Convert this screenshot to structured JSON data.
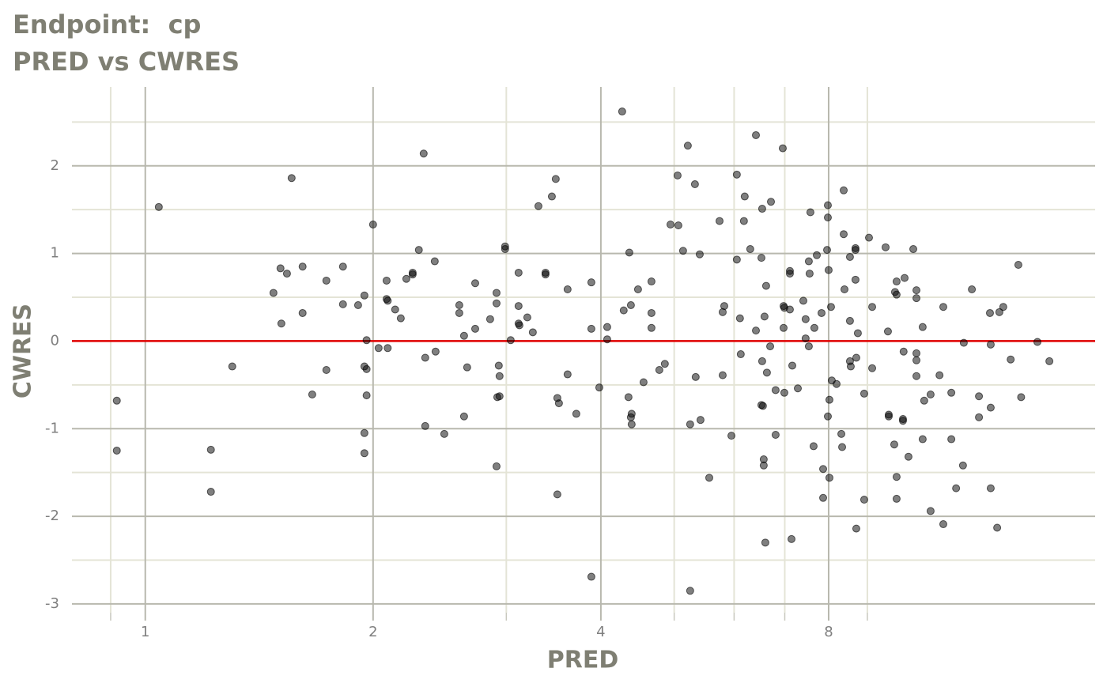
{
  "chart_data": {
    "type": "scatter",
    "title": "Endpoint:  cp",
    "subtitle": "PRED vs CWRES",
    "x_label": "PRED",
    "y_label": "CWRES",
    "x_log": true,
    "xlim": [
      0.8,
      18
    ],
    "ylim": [
      -3.1,
      2.9
    ],
    "xticks": [
      1,
      2,
      4,
      8
    ],
    "yticks": [
      -3,
      -2,
      -1,
      0,
      1,
      2
    ],
    "xminor": [
      0.9,
      3,
      5,
      6,
      7,
      9
    ],
    "yminor": [
      -2.5,
      -1.5,
      -0.5,
      0.5,
      1.5,
      2.5
    ],
    "grid": true,
    "color": "#000000",
    "refline": 0,
    "refline_color": "#e00000",
    "x": [
      0.917,
      0.917,
      1.042,
      1.221,
      1.221,
      1.303,
      1.477,
      1.509,
      1.513,
      1.539,
      1.561,
      1.614,
      1.614,
      1.662,
      1.735,
      1.735,
      1.825,
      1.825,
      1.911,
      1.948,
      1.948,
      1.948,
      1.961,
      1.948,
      1.961,
      1.961,
      2.0,
      2.034,
      2.084,
      2.084,
      2.091,
      2.091,
      2.139,
      2.176,
      2.213,
      2.256,
      2.256,
      2.299,
      2.333,
      2.344,
      2.344,
      2.413,
      2.419,
      2.484,
      2.6,
      2.6,
      2.638,
      2.638,
      2.663,
      2.729,
      2.729,
      2.856,
      2.912,
      2.912,
      2.912,
      2.919,
      2.932,
      2.939,
      2.939,
      2.989,
      2.989,
      3.04,
      3.114,
      3.114,
      3.114,
      3.122,
      3.198,
      3.252,
      3.308,
      3.38,
      3.38,
      3.446,
      3.487,
      3.504,
      3.504,
      3.521,
      3.615,
      3.615,
      3.712,
      3.886,
      3.886,
      3.886,
      3.981,
      4.078,
      4.078,
      4.268,
      4.288,
      4.351,
      4.362,
      4.383,
      4.383,
      4.393,
      4.393,
      4.479,
      4.555,
      4.666,
      4.666,
      4.666,
      4.779,
      4.86,
      4.944,
      5.052,
      5.064,
      5.137,
      5.212,
      5.249,
      5.249,
      5.326,
      5.338,
      5.404,
      5.417,
      5.563,
      5.74,
      5.795,
      5.795,
      5.823,
      5.951,
      6.05,
      6.05,
      6.108,
      6.123,
      6.182,
      6.197,
      6.302,
      6.412,
      6.412,
      6.52,
      6.52,
      6.535,
      6.535,
      6.55,
      6.566,
      6.566,
      6.582,
      6.598,
      6.614,
      6.63,
      6.696,
      6.712,
      6.808,
      6.808,
      6.958,
      6.975,
      6.975,
      6.991,
      6.991,
      7.11,
      7.11,
      7.11,
      7.145,
      7.162,
      7.284,
      7.407,
      7.459,
      7.459,
      7.532,
      7.532,
      7.55,
      7.568,
      7.642,
      7.66,
      7.717,
      7.829,
      7.867,
      7.867,
      7.962,
      7.981,
      7.981,
      7.981,
      8.0,
      8.019,
      8.019,
      8.058,
      8.077,
      8.195,
      8.315,
      8.335,
      8.375,
      8.395,
      8.375,
      8.536,
      8.536,
      8.536,
      8.557,
      8.681,
      8.681,
      8.681,
      8.702,
      8.702,
      8.744,
      8.914,
      8.914,
      9.045,
      9.133,
      9.133,
      9.514,
      9.582,
      9.605,
      9.605,
      9.768,
      9.791,
      9.838,
      9.838,
      9.838,
      9.838,
      10.03,
      10.03,
      10.05,
      10.08,
      10.2,
      10.35,
      10.45,
      10.45,
      10.45,
      10.45,
      10.45,
      10.65,
      10.65,
      10.7,
      10.91,
      10.91,
      11.21,
      11.34,
      11.34,
      11.62,
      11.62,
      11.79,
      12.04,
      12.07,
      12.37,
      12.64,
      12.64,
      13.07,
      13.1,
      13.1,
      13.1,
      13.36,
      13.45,
      13.61,
      13.92,
      14.25,
      14.37,
      15.1,
      15.66
    ],
    "values": [
      -0.68,
      -1.25,
      1.53,
      -1.24,
      -1.72,
      -0.29,
      0.55,
      0.83,
      0.2,
      0.77,
      1.86,
      0.85,
      0.32,
      -0.61,
      0.69,
      -0.33,
      0.85,
      0.42,
      0.41,
      0.52,
      -1.05,
      -1.28,
      0.01,
      -0.29,
      -0.32,
      -0.62,
      1.33,
      -0.08,
      0.69,
      0.48,
      0.46,
      -0.08,
      0.36,
      0.26,
      0.71,
      0.76,
      0.78,
      1.04,
      2.14,
      -0.19,
      -0.97,
      0.91,
      -0.12,
      -1.06,
      0.41,
      0.32,
      0.06,
      -0.86,
      -0.3,
      0.66,
      0.14,
      0.25,
      0.55,
      0.43,
      -1.43,
      -0.64,
      -0.28,
      -0.4,
      -0.63,
      1.08,
      1.05,
      0.01,
      0.78,
      0.4,
      0.2,
      0.18,
      0.27,
      0.1,
      1.54,
      0.78,
      0.76,
      1.65,
      1.85,
      -0.65,
      -1.75,
      -0.71,
      0.59,
      -0.38,
      -0.83,
      0.67,
      0.14,
      -2.69,
      -0.53,
      0.16,
      0.02,
      2.62,
      0.35,
      -0.64,
      1.01,
      -0.87,
      0.41,
      -0.83,
      -0.95,
      0.59,
      -0.47,
      0.68,
      0.32,
      0.15,
      -0.33,
      -0.26,
      1.33,
      1.89,
      1.32,
      1.03,
      2.23,
      -0.95,
      -2.85,
      1.79,
      -0.41,
      0.99,
      -0.9,
      -1.56,
      1.37,
      0.33,
      -0.39,
      0.4,
      -1.08,
      1.9,
      0.93,
      0.26,
      -0.15,
      1.37,
      1.65,
      1.05,
      2.35,
      0.12,
      -0.73,
      0.95,
      1.51,
      -0.23,
      -0.74,
      -1.35,
      -1.42,
      0.28,
      -2.3,
      0.63,
      -0.36,
      -0.06,
      1.59,
      -1.07,
      -0.56,
      2.2,
      0.15,
      0.4,
      -0.59,
      0.38,
      0.8,
      0.77,
      0.36,
      -2.26,
      -0.28,
      -0.54,
      0.46,
      0.25,
      0.03,
      -0.06,
      0.91,
      0.77,
      1.47,
      -1.2,
      0.15,
      0.98,
      0.32,
      -1.46,
      -1.79,
      1.04,
      -0.86,
      1.41,
      1.55,
      0.81,
      -1.56,
      -0.67,
      0.39,
      -0.45,
      -0.49,
      -1.06,
      -1.21,
      1.22,
      0.59,
      1.72,
      0.96,
      0.23,
      -0.23,
      -0.29,
      0.7,
      1.04,
      1.06,
      -2.14,
      -0.19,
      0.09,
      -0.6,
      -1.81,
      1.18,
      -0.31,
      0.39,
      1.07,
      0.11,
      -0.86,
      -0.84,
      -1.18,
      0.56,
      0.53,
      -1.8,
      -1.55,
      0.68,
      -0.91,
      -0.89,
      -0.12,
      0.72,
      -1.32,
      1.05,
      0.49,
      0.58,
      -0.14,
      -0.22,
      -0.4,
      0.16,
      -1.12,
      -0.68,
      -0.61,
      -1.94,
      -0.39,
      0.39,
      -2.09,
      -0.59,
      -1.12,
      -1.68,
      -1.42,
      -0.02,
      0.59,
      -0.63,
      -0.87,
      0.32,
      -0.04,
      -0.76,
      -1.68,
      -2.13,
      0.33,
      0.39,
      -0.21,
      0.87,
      -0.64,
      -0.01,
      -0.23
    ]
  }
}
